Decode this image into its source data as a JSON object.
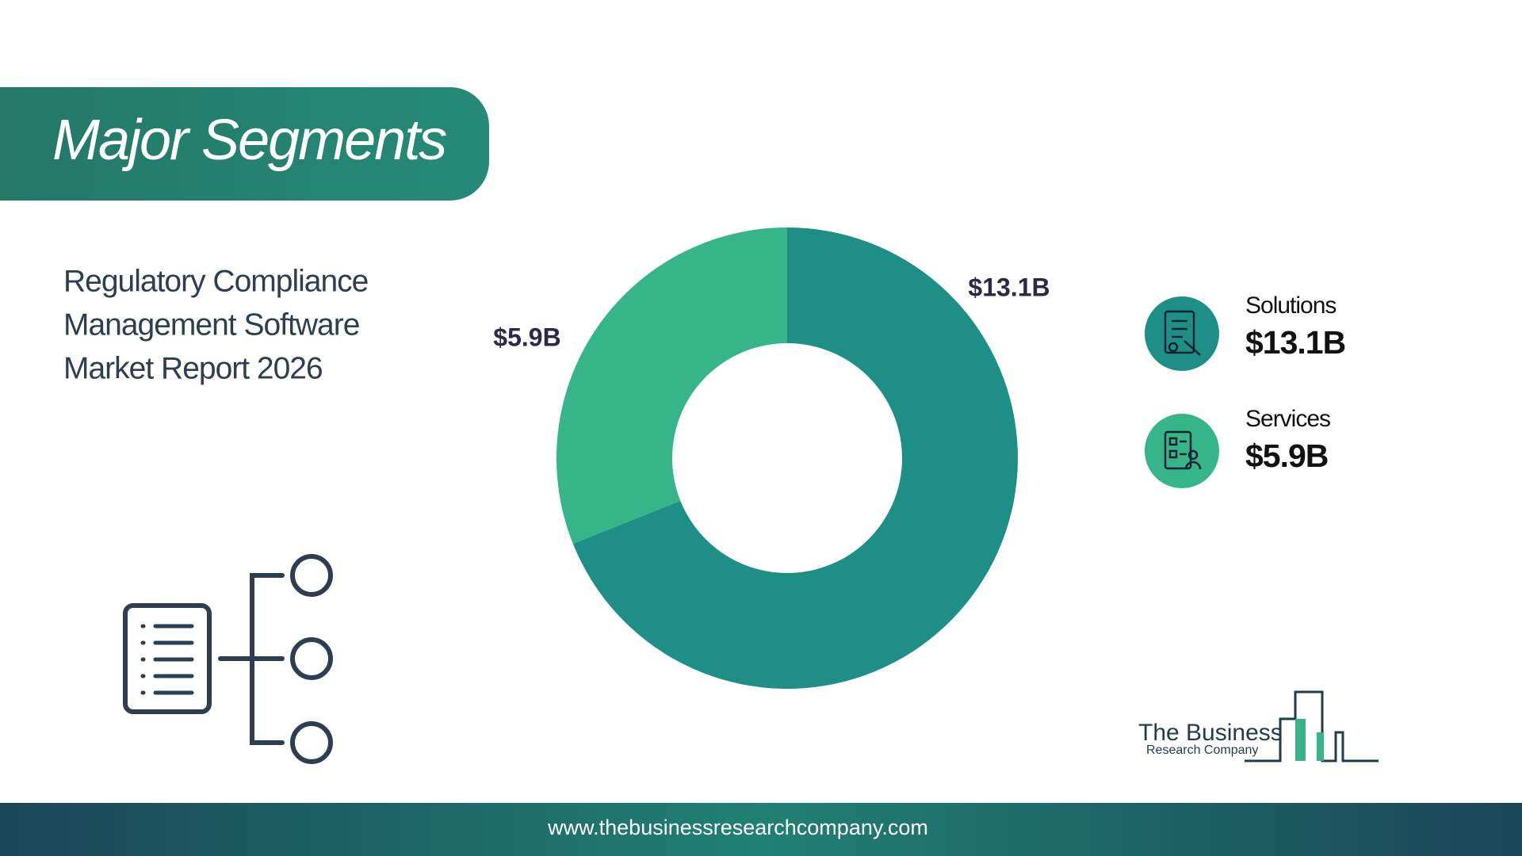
{
  "header": {
    "title": "Major Segments"
  },
  "subtitle_lines": [
    "Regulatory Compliance",
    "Management Software",
    "Market Report 2026"
  ],
  "chart_data": {
    "type": "donut",
    "categories": [
      "Solutions",
      "Services"
    ],
    "values": [
      13.1,
      5.9
    ],
    "value_labels": [
      "$13.1B",
      "$5.9B"
    ],
    "colors": [
      "#1e8f87",
      "#36b688"
    ]
  },
  "logo": {
    "line1": "The Business",
    "line2": "Research Company"
  },
  "footer": {
    "url": "www.thebusinessresearchcompany.com"
  }
}
